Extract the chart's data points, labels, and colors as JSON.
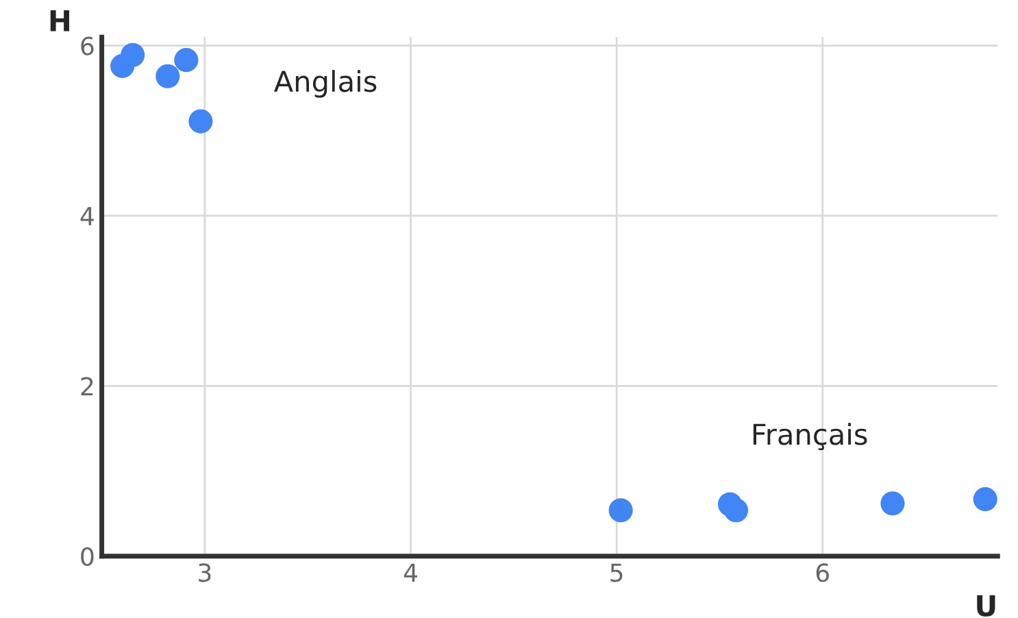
{
  "chart_data": {
    "type": "scatter",
    "xlabel": "U",
    "ylabel": "H",
    "x": [
      2.6,
      2.65,
      2.82,
      2.91,
      2.98,
      5.02,
      5.55,
      5.58,
      6.34,
      6.79
    ],
    "values": [
      5.76,
      5.89,
      5.64,
      5.83,
      5.11,
      0.54,
      0.61,
      0.54,
      0.62,
      0.67
    ],
    "color": "#4285f4",
    "marker": "circle",
    "xlim": [
      2.5,
      6.85
    ],
    "ylim": [
      0,
      6.1
    ],
    "xticks": [
      3,
      4,
      5,
      6
    ],
    "yticks": [
      0,
      2,
      4,
      6
    ],
    "grid": true,
    "annotations": [
      "Anglais",
      "Français"
    ]
  }
}
